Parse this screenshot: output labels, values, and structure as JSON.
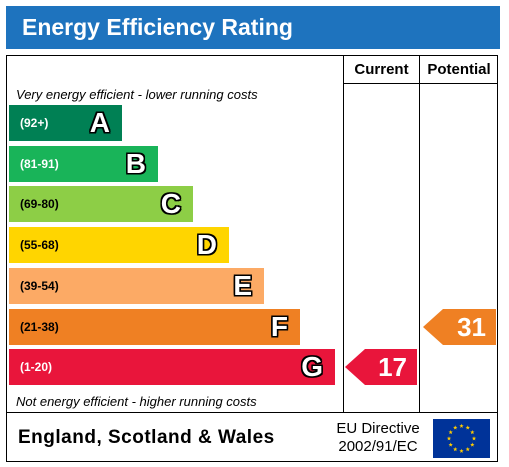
{
  "header": {
    "title": "Energy Efficiency Rating"
  },
  "columns": {
    "current": "Current",
    "potential": "Potential"
  },
  "notes": {
    "top": "Very energy efficient - lower running costs",
    "bottom": "Not energy efficient - higher running costs"
  },
  "chart_data": {
    "type": "bar",
    "title": "Energy Efficiency Rating",
    "bands": [
      {
        "letter": "A",
        "range": "(92+)",
        "color": "#008054",
        "min": 92,
        "max": 100
      },
      {
        "letter": "B",
        "range": "(81-91)",
        "color": "#19b459",
        "min": 81,
        "max": 91
      },
      {
        "letter": "C",
        "range": "(69-80)",
        "color": "#8dce46",
        "min": 69,
        "max": 80
      },
      {
        "letter": "D",
        "range": "(55-68)",
        "color": "#ffd500",
        "min": 55,
        "max": 68
      },
      {
        "letter": "E",
        "range": "(39-54)",
        "color": "#fcaa65",
        "min": 39,
        "max": 54
      },
      {
        "letter": "F",
        "range": "(21-38)",
        "color": "#ef8023",
        "min": 21,
        "max": 38
      },
      {
        "letter": "G",
        "range": "(1-20)",
        "color": "#e9153b",
        "min": 1,
        "max": 20
      }
    ],
    "current": {
      "value": 17,
      "band": "G",
      "color": "#e9153b"
    },
    "potential": {
      "value": 31,
      "band": "F",
      "color": "#ef8023"
    }
  },
  "footer": {
    "region": "England, Scotland & Wales",
    "directive_line1": "EU Directive",
    "directive_line2": "2002/91/EC"
  }
}
